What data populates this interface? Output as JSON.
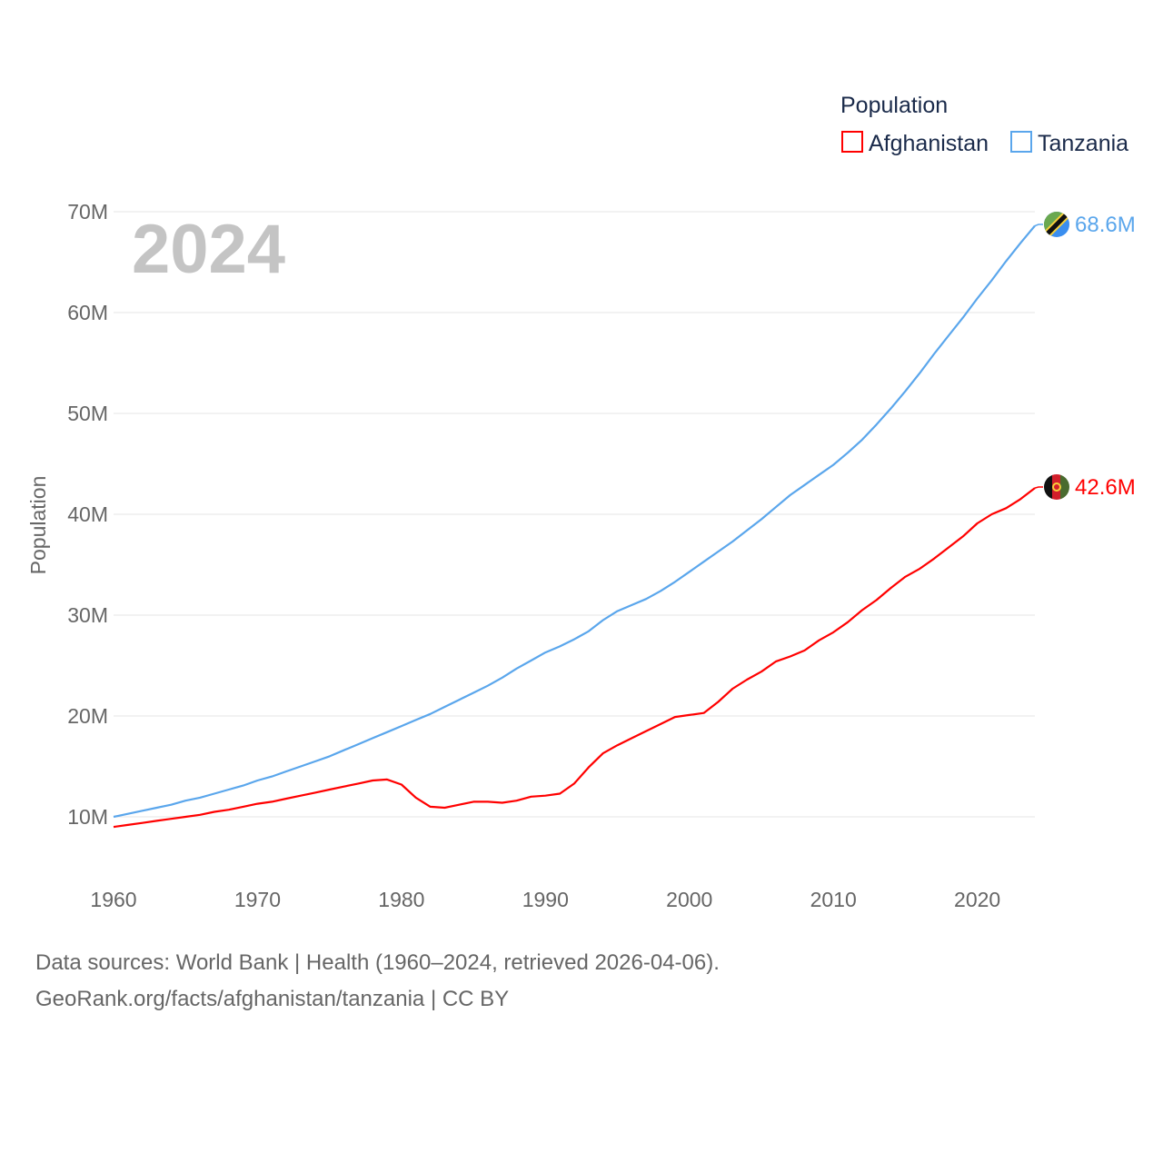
{
  "chart_data": {
    "type": "line",
    "title": "",
    "legend_title": "Population",
    "legend_position": "top-right",
    "xlabel": "",
    "ylabel": "Population",
    "watermark_year": "2024",
    "xlim": [
      1960,
      2024
    ],
    "ylim": [
      10,
      70
    ],
    "x_ticks": [
      1960,
      1970,
      1980,
      1990,
      2000,
      2010,
      2020
    ],
    "x_tick_labels": [
      "1960",
      "1970",
      "1980",
      "1990",
      "2000",
      "2010",
      "2020"
    ],
    "y_ticks": [
      10,
      20,
      30,
      40,
      50,
      60,
      70
    ],
    "y_tick_labels": [
      "10M",
      "20M",
      "30M",
      "40M",
      "50M",
      "60M",
      "70M"
    ],
    "grid": true,
    "x": [
      1960,
      1961,
      1962,
      1963,
      1964,
      1965,
      1966,
      1967,
      1968,
      1969,
      1970,
      1971,
      1972,
      1973,
      1974,
      1975,
      1976,
      1977,
      1978,
      1979,
      1980,
      1981,
      1982,
      1983,
      1984,
      1985,
      1986,
      1987,
      1988,
      1989,
      1990,
      1991,
      1992,
      1993,
      1994,
      1995,
      1996,
      1997,
      1998,
      1999,
      2000,
      2001,
      2002,
      2003,
      2004,
      2005,
      2006,
      2007,
      2008,
      2009,
      2010,
      2011,
      2012,
      2013,
      2014,
      2015,
      2016,
      2017,
      2018,
      2019,
      2020,
      2021,
      2022,
      2023,
      2024
    ],
    "series": [
      {
        "name": "Afghanistan",
        "color": "#ff0000",
        "end_label": "42.6M",
        "values": [
          9.0,
          9.2,
          9.4,
          9.6,
          9.8,
          10.0,
          10.2,
          10.5,
          10.7,
          11.0,
          11.3,
          11.5,
          11.8,
          12.1,
          12.4,
          12.7,
          13.0,
          13.3,
          13.6,
          13.7,
          13.2,
          11.9,
          11.0,
          10.9,
          11.2,
          11.5,
          11.5,
          11.4,
          11.6,
          12.0,
          12.1,
          12.3,
          13.3,
          14.9,
          16.3,
          17.1,
          17.8,
          18.5,
          19.2,
          19.9,
          20.1,
          20.3,
          21.4,
          22.7,
          23.6,
          24.4,
          25.4,
          25.9,
          26.5,
          27.5,
          28.3,
          29.3,
          30.5,
          31.5,
          32.7,
          33.8,
          34.6,
          35.6,
          36.7,
          37.8,
          39.1,
          40.0,
          40.6,
          41.5,
          42.6
        ]
      },
      {
        "name": "Tanzania",
        "color": "#5aa6ec",
        "end_label": "68.6M",
        "values": [
          10.0,
          10.3,
          10.6,
          10.9,
          11.2,
          11.6,
          11.9,
          12.3,
          12.7,
          13.1,
          13.6,
          14.0,
          14.5,
          15.0,
          15.5,
          16.0,
          16.6,
          17.2,
          17.8,
          18.4,
          19.0,
          19.6,
          20.2,
          20.9,
          21.6,
          22.3,
          23.0,
          23.8,
          24.7,
          25.5,
          26.3,
          26.9,
          27.6,
          28.4,
          29.5,
          30.4,
          31.0,
          31.6,
          32.4,
          33.3,
          34.3,
          35.3,
          36.3,
          37.3,
          38.4,
          39.5,
          40.7,
          41.9,
          42.9,
          43.9,
          44.9,
          46.1,
          47.4,
          48.9,
          50.5,
          52.2,
          54.0,
          55.9,
          57.7,
          59.5,
          61.4,
          63.2,
          65.1,
          66.9,
          68.6
        ]
      }
    ]
  },
  "footer": {
    "line1": "Data sources: World Bank | Health (1960–2024, retrieved 2026-04-06).",
    "line2": "GeoRank.org/facts/afghanistan/tanzania | CC BY"
  }
}
